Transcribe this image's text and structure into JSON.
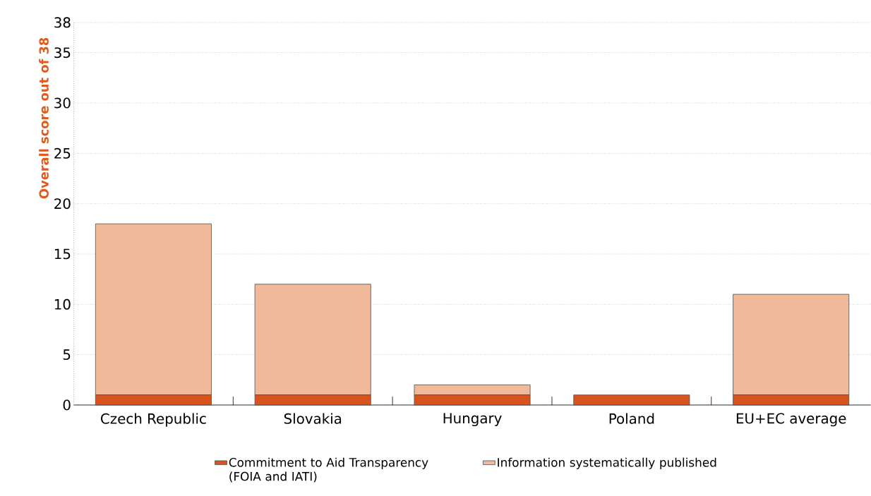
{
  "chart_data": {
    "type": "bar",
    "stacked": true,
    "ylabel": "Overall score out of 38",
    "categories": [
      "Czech Republic",
      "Slovakia",
      "Hungary",
      "Poland",
      "EU+EC average"
    ],
    "series": [
      {
        "name": "Commitment to Aid Transparency (FOIA and IATI)",
        "color": "#d9531e",
        "values": [
          1,
          1,
          1,
          1,
          1
        ]
      },
      {
        "name": "Information systematically published",
        "color": "#f0b99a",
        "values": [
          17,
          11,
          1,
          0,
          10
        ]
      }
    ],
    "ylim": [
      0,
      38
    ],
    "yticks": [
      0,
      5,
      10,
      15,
      20,
      25,
      30,
      35,
      38
    ],
    "grid": "y",
    "legend": "bottom"
  }
}
